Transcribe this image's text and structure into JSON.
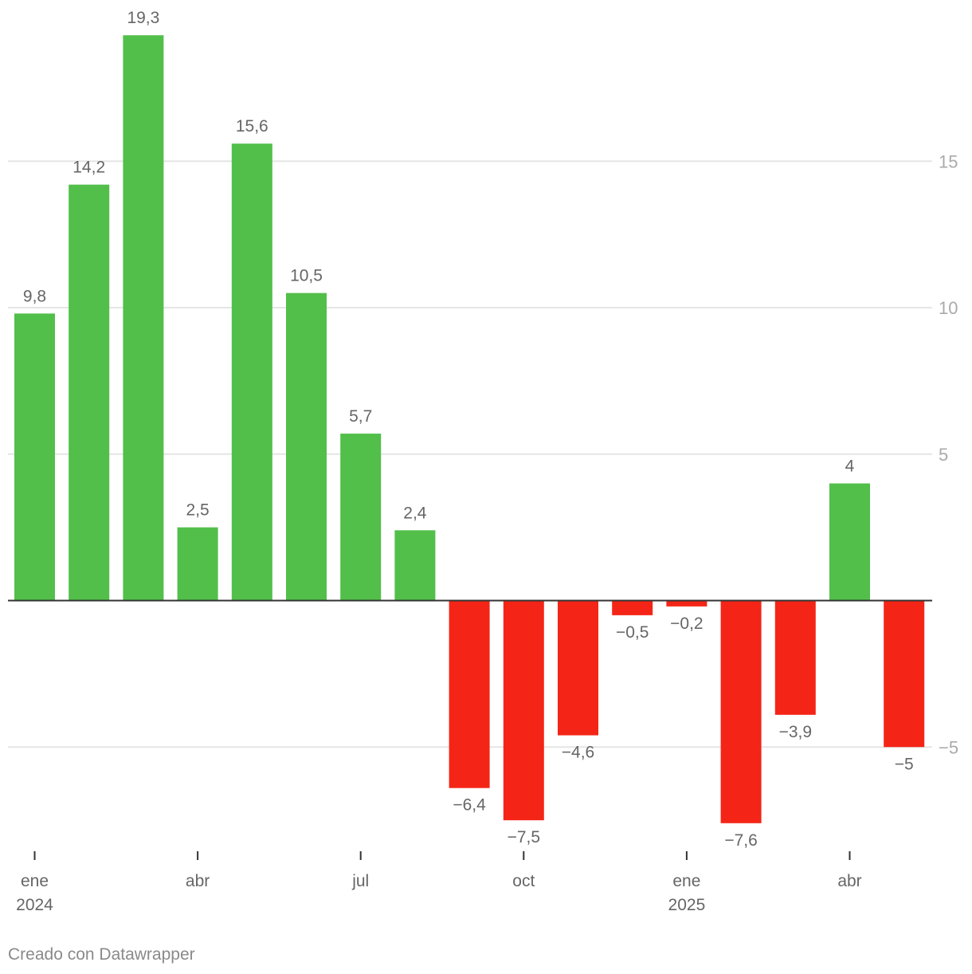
{
  "chart_data": {
    "type": "bar",
    "categories": [
      "2024-01",
      "2024-02",
      "2024-03",
      "2024-04",
      "2024-05",
      "2024-06",
      "2024-07",
      "2024-08",
      "2024-09",
      "2024-10",
      "2024-11",
      "2024-12",
      "2025-01",
      "2025-02",
      "2025-03",
      "2025-04",
      "2025-05"
    ],
    "values": [
      9.8,
      14.2,
      19.3,
      2.5,
      15.6,
      10.5,
      5.7,
      2.4,
      -6.4,
      -7.5,
      -4.6,
      -0.5,
      -0.2,
      -7.6,
      -3.9,
      4,
      -5
    ],
    "value_labels": [
      "9,8",
      "14,2",
      "19,3",
      "2,5",
      "15,6",
      "10,5",
      "5,7",
      "2,4",
      "−6,4",
      "−7,5",
      "−4,6",
      "−0,5",
      "−0,2",
      "−7,6",
      "−3,9",
      "4",
      "−5"
    ],
    "ylim": [
      -8.5,
      19.5
    ],
    "y_ticks": [
      15,
      10,
      5,
      -5
    ],
    "y_tick_labels": [
      "15",
      "10",
      "5",
      "−5"
    ],
    "x_ticks": [
      {
        "index": 0,
        "label": "ene",
        "year": "2024"
      },
      {
        "index": 3,
        "label": "abr",
        "year": ""
      },
      {
        "index": 6,
        "label": "jul",
        "year": ""
      },
      {
        "index": 9,
        "label": "oct",
        "year": ""
      },
      {
        "index": 12,
        "label": "ene",
        "year": "2025"
      },
      {
        "index": 15,
        "label": "abr",
        "year": ""
      }
    ],
    "grid": true,
    "colors": {
      "positive": "#52bf4a",
      "negative": "#f42517",
      "grid": "#e5e5e5",
      "zero_line": "#333333",
      "label": "#666666",
      "tick": "#aaaaaa"
    }
  },
  "footer": {
    "credit": "Creado con Datawrapper"
  }
}
